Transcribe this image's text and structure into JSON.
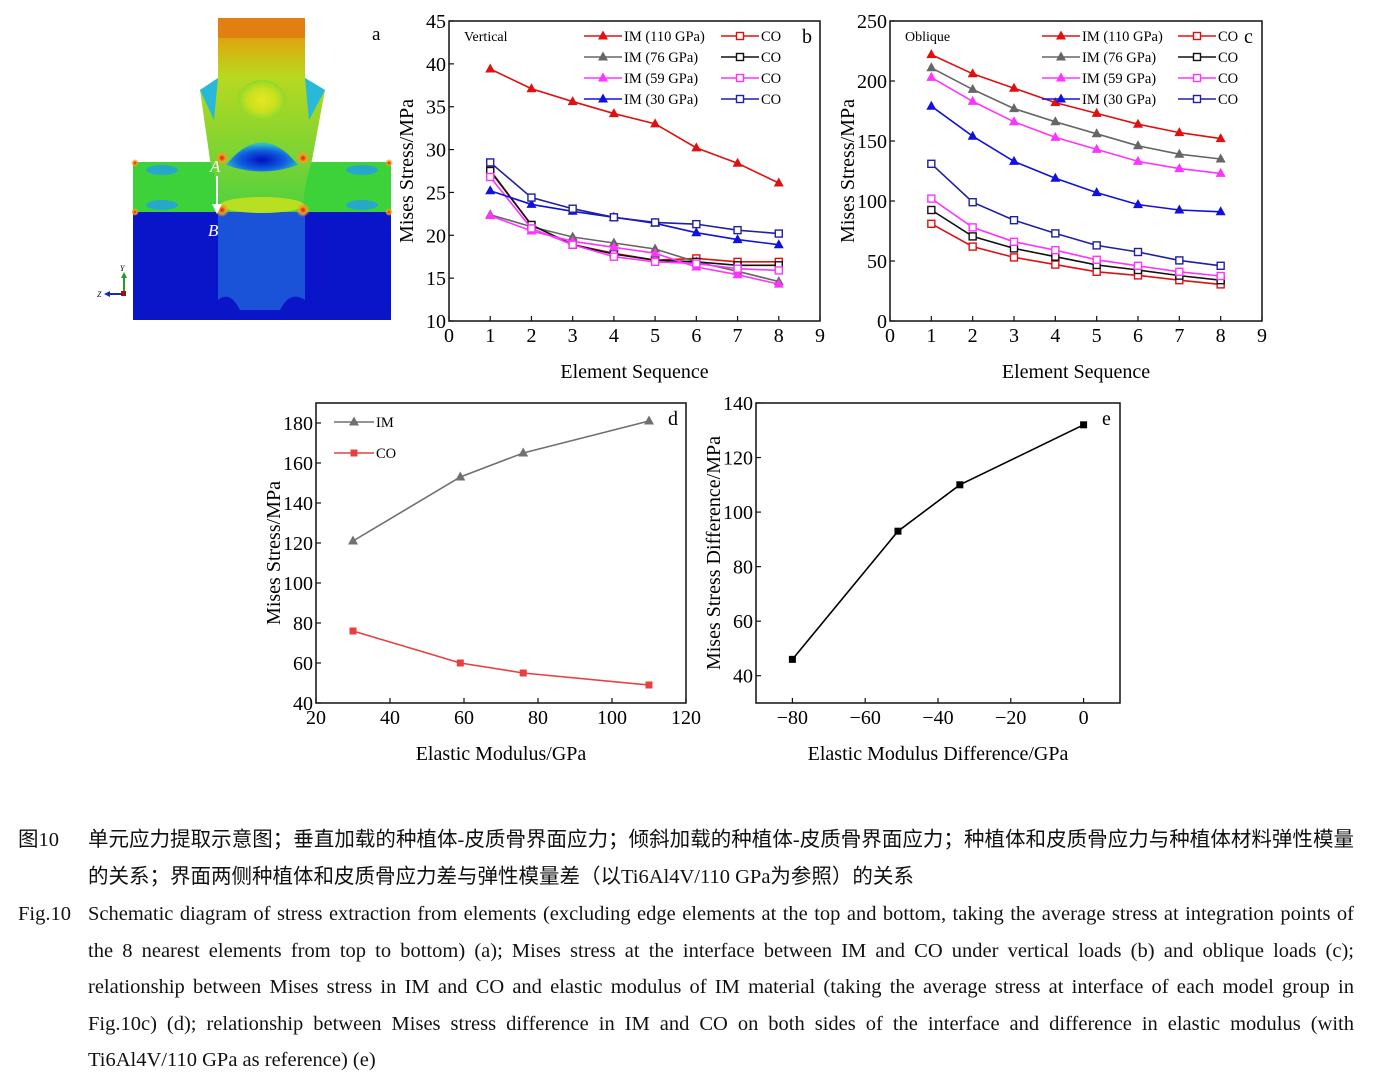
{
  "panel_a": {
    "label": "a",
    "point_a": "A",
    "point_b": "B",
    "axis_y": "Y",
    "axis_z": "Z"
  },
  "chart_data": [
    {
      "id": "b",
      "type": "line",
      "panel_label": "b",
      "annotation": "Vertical",
      "xlabel": "Element Sequence",
      "ylabel": "Mises Stress/MPa",
      "xlim": [
        0,
        9
      ],
      "ylim": [
        10,
        45
      ],
      "xticks": [
        0,
        1,
        2,
        3,
        4,
        5,
        6,
        7,
        8,
        9
      ],
      "yticks": [
        10,
        15,
        20,
        25,
        30,
        35,
        40,
        45
      ],
      "x": [
        1,
        2,
        3,
        4,
        5,
        6,
        7,
        8
      ],
      "legend": "top-right",
      "series": [
        {
          "name": "IM (110 GPa)",
          "color": "#e01010",
          "marker": "triangle",
          "values": [
            39.4,
            37.1,
            35.6,
            34.2,
            33.0,
            30.2,
            28.4,
            26.1
          ]
        },
        {
          "name": "CO",
          "color": "#e01010",
          "marker": "square-open",
          "values": [
            27.6,
            21.2,
            18.9,
            17.9,
            17.1,
            17.3,
            16.9,
            16.9
          ]
        },
        {
          "name": "IM (76 GPa)",
          "color": "#666666",
          "marker": "triangle",
          "values": [
            22.4,
            21.0,
            19.8,
            19.1,
            18.4,
            16.9,
            15.8,
            14.6
          ]
        },
        {
          "name": "CO",
          "color": "#111111",
          "marker": "square-open",
          "values": [
            27.5,
            21.2,
            18.9,
            17.8,
            17.1,
            16.9,
            16.5,
            16.5
          ]
        },
        {
          "name": "IM (59 GPa)",
          "color": "#ff33ff",
          "marker": "triangle",
          "values": [
            22.3,
            20.5,
            19.3,
            18.6,
            17.9,
            16.3,
            15.4,
            14.3
          ]
        },
        {
          "name": "CO",
          "color": "#ff33ff",
          "marker": "square-open",
          "values": [
            26.8,
            20.8,
            18.9,
            17.5,
            16.9,
            16.7,
            16.1,
            15.9
          ]
        },
        {
          "name": "IM (30 GPa)",
          "color": "#1010e0",
          "marker": "triangle",
          "values": [
            25.2,
            23.6,
            22.8,
            22.1,
            21.4,
            20.3,
            19.5,
            18.9
          ]
        },
        {
          "name": "CO",
          "color": "#2020a0",
          "marker": "square-open",
          "values": [
            28.5,
            24.4,
            23.1,
            22.1,
            21.5,
            21.3,
            20.6,
            20.2
          ]
        }
      ]
    },
    {
      "id": "c",
      "type": "line",
      "panel_label": "c",
      "annotation": "Oblique",
      "xlabel": "Element Sequence",
      "ylabel": "Mises Stress/MPa",
      "xlim": [
        0,
        9
      ],
      "ylim": [
        0,
        250
      ],
      "xticks": [
        0,
        1,
        2,
        3,
        4,
        5,
        6,
        7,
        8,
        9
      ],
      "yticks": [
        0,
        50,
        100,
        150,
        200,
        250
      ],
      "x": [
        1,
        2,
        3,
        4,
        5,
        6,
        7,
        8
      ],
      "legend": "top-right",
      "series": [
        {
          "name": "IM (110 GPa)",
          "color": "#e01010",
          "marker": "triangle",
          "values": [
            222,
            206,
            194,
            182,
            173,
            164,
            157,
            152
          ]
        },
        {
          "name": "CO",
          "color": "#e01010",
          "marker": "square-open",
          "values": [
            81,
            62,
            53,
            47,
            41,
            38,
            34,
            30.5
          ]
        },
        {
          "name": "IM (76 GPa)",
          "color": "#666666",
          "marker": "triangle",
          "values": [
            211,
            193,
            177,
            166,
            156,
            146,
            139,
            135
          ]
        },
        {
          "name": "CO",
          "color": "#111111",
          "marker": "square-open",
          "values": [
            92.5,
            70.5,
            60.5,
            53.6,
            46.7,
            42.5,
            37.8,
            34
          ]
        },
        {
          "name": "IM (59 GPa)",
          "color": "#ff33ff",
          "marker": "triangle",
          "values": [
            203,
            183,
            166,
            153,
            143,
            133,
            127,
            123
          ]
        },
        {
          "name": "CO",
          "color": "#ff33ff",
          "marker": "square-open",
          "values": [
            102,
            78,
            66,
            59,
            51,
            46,
            41,
            37.5
          ]
        },
        {
          "name": "IM (30 GPa)",
          "color": "#1010e0",
          "marker": "triangle",
          "values": [
            179,
            154,
            133,
            119,
            107,
            97,
            92.5,
            91
          ]
        },
        {
          "name": "CO",
          "color": "#2020a0",
          "marker": "square-open",
          "values": [
            131,
            99,
            84,
            73,
            63,
            57.5,
            50.5,
            46
          ]
        }
      ]
    },
    {
      "id": "d",
      "type": "line",
      "panel_label": "d",
      "xlabel": "Elastic Modulus/GPa",
      "ylabel": "Mises Stress/MPa",
      "xlim": [
        20,
        120
      ],
      "ylim": [
        40,
        190
      ],
      "xticks": [
        20,
        40,
        60,
        80,
        100,
        120
      ],
      "yticks": [
        40,
        60,
        80,
        100,
        120,
        140,
        160,
        180
      ],
      "x": [
        30,
        59,
        76,
        110
      ],
      "legend": "top-left",
      "series": [
        {
          "name": "IM",
          "color": "#707070",
          "marker": "triangle",
          "values": [
            121,
            153,
            165,
            181
          ]
        },
        {
          "name": "CO",
          "color": "#e84040",
          "marker": "square",
          "values": [
            76,
            60,
            55,
            49
          ]
        }
      ]
    },
    {
      "id": "e",
      "type": "line",
      "panel_label": "e",
      "xlabel": "Elastic Modulus Difference/GPa",
      "ylabel": "Mises Stress Difference/MPa",
      "xlim": [
        -90,
        10
      ],
      "ylim": [
        30,
        140
      ],
      "xticks": [
        -80,
        -60,
        -40,
        -20,
        0
      ],
      "yticks": [
        40,
        60,
        80,
        100,
        120,
        140
      ],
      "x": [
        -80,
        -51,
        -34,
        0
      ],
      "legend": "none",
      "series": [
        {
          "color": "#000000",
          "marker": "square",
          "values": [
            46,
            93,
            110,
            132
          ]
        }
      ]
    }
  ],
  "caption": {
    "cn_label": "图10",
    "cn_text": "单元应力提取示意图；垂直加载的种植体-皮质骨界面应力；倾斜加载的种植体-皮质骨界面应力；种植体和皮质骨应力与种植体材料弹性模量的关系；界面两侧种植体和皮质骨应力差与弹性模量差（以Ti6Al4V/110 GPa为参照）的关系",
    "en_label": "Fig.10",
    "en_text": "Schematic diagram of stress extraction from elements (excluding edge elements at the top and bottom, taking the average stress at integration points of the 8 nearest elements from top to bottom) (a); Mises stress at the interface between IM and CO under vertical loads (b) and oblique loads (c); relationship between Mises stress in IM and CO and elastic modulus of IM material (taking the average stress at interface of each model group in Fig.10c) (d); relationship between Mises stress difference in IM and CO on both sides of the interface and difference in elastic modulus (with Ti6Al4V/110 GPa as reference) (e)"
  }
}
